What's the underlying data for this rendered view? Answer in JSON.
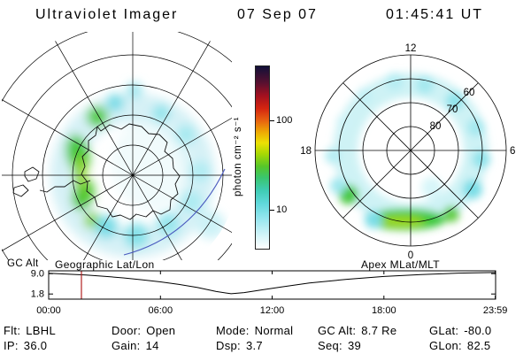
{
  "header": {
    "title": "Ultraviolet Imager",
    "date": "07 Sep 07",
    "time": "01:45:41 UT"
  },
  "colorbar": {
    "label": "photon cm⁻² s⁻¹",
    "tick_top": "100",
    "tick_bottom": "10"
  },
  "left_panel": {
    "caption": "Geographic Lat/Lon"
  },
  "right_panel": {
    "caption": "Apex MLat/MLT",
    "mlt_top": "12",
    "mlt_right": "6",
    "mlt_bottom": "0",
    "mlt_left": "18",
    "mlat_80": "80",
    "mlat_70": "70",
    "mlat_60": "60"
  },
  "orbit_chart": {
    "ylabel": "GC Alt"
  },
  "status": {
    "row1": [
      {
        "label": "Flt:",
        "value": "LBHL"
      },
      {
        "label": "Door:",
        "value": "Open"
      },
      {
        "label": "Mode:",
        "value": "Normal"
      },
      {
        "label": "GC Alt:",
        "value": "8.7 Re"
      },
      {
        "label": "GLat:",
        "value": "-80.0"
      }
    ],
    "row2": [
      {
        "label": "IP:",
        "value": "36.0"
      },
      {
        "label": "Gain:",
        "value": "14"
      },
      {
        "label": "Dsp:",
        "value": "3.7"
      },
      {
        "label": "Seq:",
        "value": "39"
      },
      {
        "label": "GLon:",
        "value": "82.5"
      }
    ]
  },
  "chart_data": [
    {
      "type": "line",
      "title": "GC Alt spacecraft altitude vs UT",
      "ylabel": "GC Alt",
      "xlabel": "UT",
      "xlim": [
        0,
        24
      ],
      "ylim": [
        0,
        10
      ],
      "x": [
        0,
        1,
        2,
        3,
        4,
        5,
        6,
        7,
        8,
        9,
        9.8,
        10.5,
        11.5,
        12.5,
        14,
        16,
        18,
        20,
        22,
        23.98
      ],
      "y": [
        9.15,
        8.85,
        8.5,
        8.05,
        7.5,
        6.85,
        6.1,
        5.2,
        4.1,
        2.7,
        1.9,
        2.3,
        3.3,
        4.3,
        5.7,
        7.0,
        8.0,
        8.7,
        9.2,
        9.4
      ],
      "yticks": [
        "9.0",
        "1.8"
      ],
      "xtick_labels": [
        "00:00",
        "06:00",
        "12:00",
        "18:00",
        "23:59"
      ],
      "marker_time_hours": 1.76,
      "marker_color": "#b22222",
      "line_color": "#000000",
      "grid": false
    },
    {
      "type": "heatmap",
      "title": "Geographic Lat/Lon",
      "description": "South-polar UV auroral image over Antarctica: diffuse cyan auroral oval around the pole with bright green arcs on the left (dusk) side; geographic graticule and Antarctic coastline overlaid",
      "colorbar_label": "photon cm⁻² s⁻¹",
      "colorbar_ticks": [
        10,
        100
      ],
      "scale": "log"
    },
    {
      "type": "heatmap",
      "title": "Apex MLat/MLT",
      "description": "Auroral oval in Apex magnetic latitude / magnetic local time: patchy cyan oval near 60–75° MLat with bright green arc near midnight (bottom) and a bright patch near dusk",
      "grid_circles_mlat": [
        80,
        70,
        60,
        50
      ],
      "mlt_labels": {
        "top": "12",
        "right": "6",
        "bottom": "0",
        "left": "18"
      }
    }
  ]
}
